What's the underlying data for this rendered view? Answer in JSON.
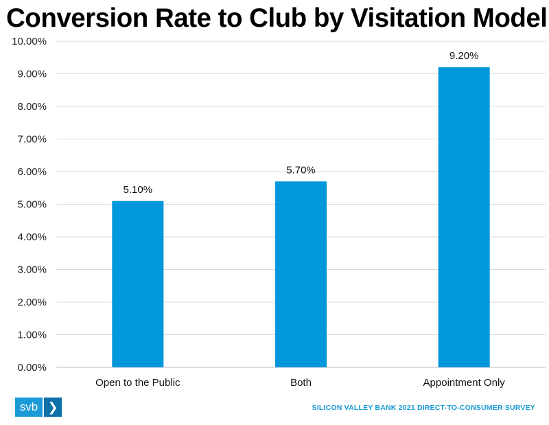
{
  "chart_data": {
    "type": "bar",
    "title": "Conversion Rate to Club by Visitation Model",
    "categories": [
      "Open to the Public",
      "Both",
      "Appointment Only"
    ],
    "values": [
      5.1,
      5.7,
      9.2
    ],
    "data_labels": [
      "5.10%",
      "5.70%",
      "9.20%"
    ],
    "ylim": [
      0,
      10
    ],
    "yticks": [
      0,
      1,
      2,
      3,
      4,
      5,
      6,
      7,
      8,
      9,
      10
    ],
    "ytick_labels": [
      "0.00%",
      "1.00%",
      "2.00%",
      "3.00%",
      "4.00%",
      "5.00%",
      "6.00%",
      "7.00%",
      "8.00%",
      "9.00%",
      "10.00%"
    ],
    "xlabel": "",
    "ylabel": "",
    "grid": true,
    "bar_color": "#0097dc"
  },
  "branding": {
    "logo_text": "svb",
    "logo_arrow": "❯",
    "source": "SILICON VALLEY BANK 2021 DIRECT-TO-CONSUMER SURVEY",
    "accent_color": "#1a9ad6"
  }
}
